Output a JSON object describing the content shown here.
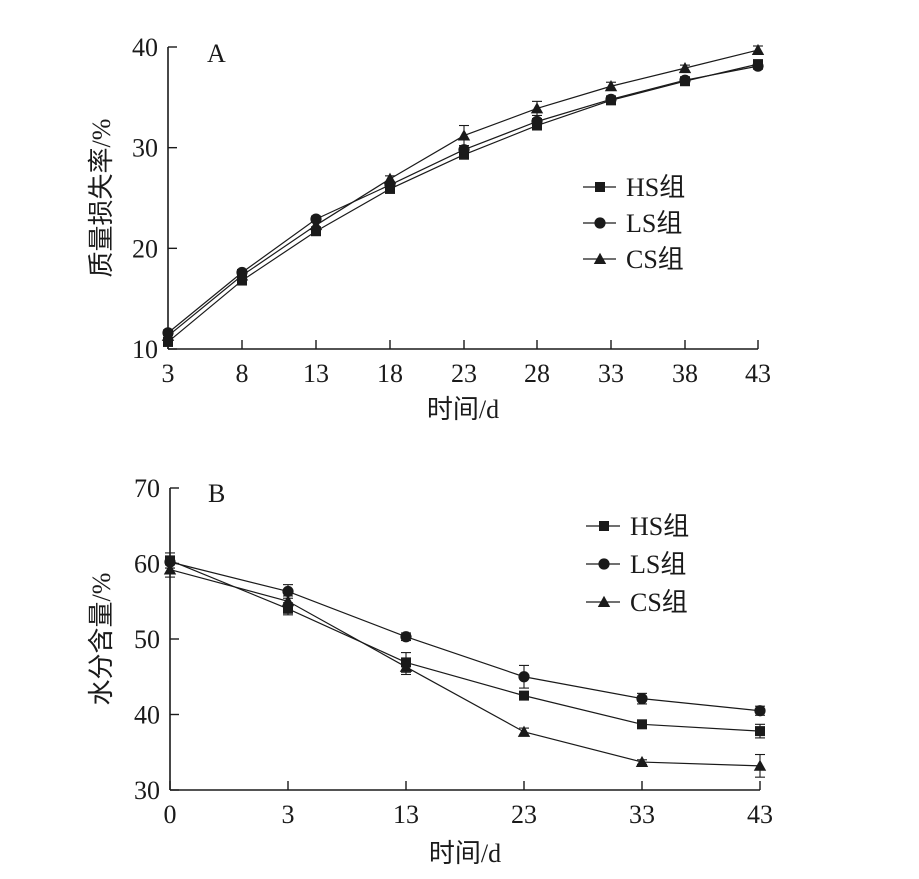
{
  "chart_data": [
    {
      "type": "line",
      "title": "A",
      "xlabel": "时间/d",
      "ylabel": "质量损失率/%",
      "x": [
        3,
        8,
        13,
        18,
        23,
        28,
        33,
        38,
        43
      ],
      "xticks": [
        "3",
        "8",
        "13",
        "18",
        "23",
        "28",
        "33",
        "38",
        "43"
      ],
      "yticks": [
        "10",
        "20",
        "30",
        "40"
      ],
      "ylim": [
        10,
        40
      ],
      "legend_position": "right-middle",
      "series": [
        {
          "name": "HS组",
          "marker": "square",
          "values": [
            10.7,
            16.8,
            21.7,
            25.9,
            29.3,
            32.2,
            34.7,
            36.6,
            38.3
          ],
          "errors": [
            0.4,
            0.3,
            0.4,
            0.3,
            0.4,
            0.3,
            0.3,
            0.3,
            0.3
          ]
        },
        {
          "name": "LS组",
          "marker": "circle",
          "values": [
            11.6,
            17.6,
            22.9,
            26.3,
            29.8,
            32.6,
            34.8,
            36.7,
            38.1
          ],
          "errors": [
            0.3,
            0.3,
            0.3,
            0.3,
            0.4,
            0.3,
            0.3,
            0.3,
            0.3
          ]
        },
        {
          "name": "CS组",
          "marker": "triangle",
          "values": [
            11.3,
            17.3,
            22.3,
            26.9,
            31.2,
            33.9,
            36.1,
            37.9,
            39.7
          ],
          "errors": [
            0.4,
            0.3,
            0.3,
            0.3,
            1.0,
            0.7,
            0.4,
            0.3,
            0.4
          ]
        }
      ]
    },
    {
      "type": "line",
      "title": "B",
      "xlabel": "时间/d",
      "ylabel": "水分含量/%",
      "x": [
        0,
        3,
        13,
        23,
        33,
        43
      ],
      "xticks": [
        "0",
        "3",
        "13",
        "23",
        "33",
        "43"
      ],
      "yticks": [
        "30",
        "40",
        "50",
        "60",
        "70"
      ],
      "ylim": [
        30,
        70
      ],
      "legend_position": "top-right",
      "series": [
        {
          "name": "HS组",
          "marker": "square",
          "values": [
            60.4,
            54.0,
            46.9,
            42.5,
            38.7,
            37.8
          ],
          "errors": [
            1.0,
            0.8,
            1.3,
            0.5,
            0.5,
            0.9
          ]
        },
        {
          "name": "LS组",
          "marker": "circle",
          "values": [
            60.2,
            56.3,
            50.3,
            45.0,
            42.1,
            40.5
          ],
          "errors": [
            0.8,
            0.9,
            0.5,
            1.5,
            0.7,
            0.6
          ]
        },
        {
          "name": "CS组",
          "marker": "triangle",
          "values": [
            59.2,
            55.0,
            46.3,
            37.7,
            33.7,
            33.2
          ],
          "errors": [
            1.0,
            0.7,
            1.0,
            0.5,
            0.3,
            1.5
          ]
        }
      ]
    }
  ]
}
